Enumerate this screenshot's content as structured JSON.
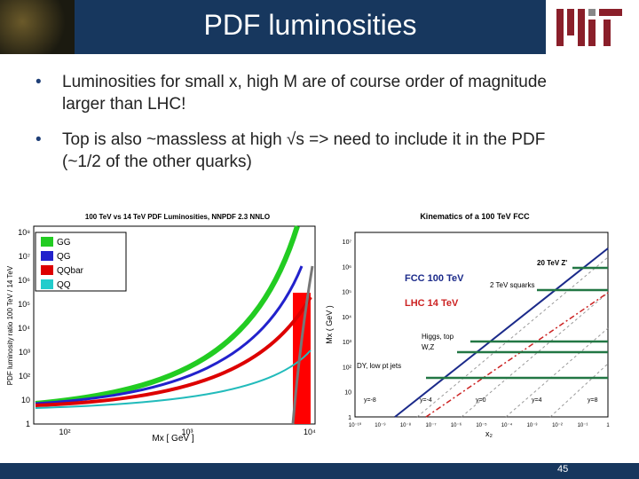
{
  "header": {
    "title": "PDF luminosities"
  },
  "bullets": [
    "Luminosities for small x, high M are of course order of magnitude larger than LHC!",
    "Top is also ~massless at high √s => need to include it in the PDF (~1/2 of the other quarks)"
  ],
  "figures": [
    {
      "title": "100 TeV vs 14 TeV PDF Luminosities, NNPDF 2.3 NNLO",
      "y_label": "PDF luminosity ratio 100 TeV / 14 TeV",
      "x_label": "Mx [ GeV ]",
      "y_tick_labels": [
        "1",
        "10",
        "10²",
        "10³",
        "10⁴",
        "10⁵",
        "10⁶",
        "10⁷",
        "10⁸"
      ],
      "x_tick_labels": [
        "10²",
        "10³",
        "10⁴"
      ],
      "legend": [
        "GG",
        "QG",
        "QQbar",
        "QQ"
      ]
    },
    {
      "title": "Kinematics of a 100 TeV FCC",
      "y_label": "Mx ( GeV )",
      "x_label": "x₂",
      "y_tick_labels": [
        "1",
        "10",
        "10²",
        "10³",
        "10⁴",
        "10⁵",
        "10⁶",
        "10⁷"
      ],
      "x_tick_labels": [
        "10⁻¹⁰",
        "10⁻⁹",
        "10⁻⁸",
        "10⁻⁷",
        "10⁻⁶",
        "10⁻⁵",
        "10⁻⁴",
        "10⁻³",
        "10⁻²",
        "10⁻¹",
        "1"
      ],
      "annotations": [
        "FCC 100 TeV",
        "LHC 14 TeV",
        "20 TeV Z'",
        "2 TeV squarks",
        "Higgs, top",
        "W,Z",
        "DY, low pt jets"
      ],
      "rapidity_labels": [
        "y=-8",
        "y=-4",
        "y=0",
        "y=4",
        "y=8"
      ]
    }
  ],
  "footer": {
    "page": "45"
  }
}
